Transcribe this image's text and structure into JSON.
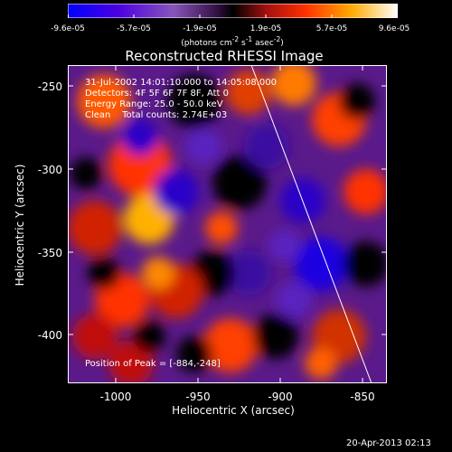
{
  "colorbar": {
    "ticks": [
      "-9.6e-05",
      "-5.7e-05",
      "-1.9e-05",
      "1.9e-05",
      "5.7e-05",
      "9.6e-05"
    ],
    "units_text": "(photons cm",
    "units_sup1": "-2",
    "units_mid": " s",
    "units_sup2": "-1",
    "units_tail": " asec",
    "units_sup3": "-2",
    "units_close": ")",
    "colors": [
      "#0000ff",
      "#5500cc",
      "#8844aa",
      "#552266",
      "#000000",
      "#b01010",
      "#ff4000",
      "#ffaa00",
      "#ffffff"
    ]
  },
  "title": "Reconstructed RHESSI Image",
  "info": {
    "line1": "31-Jul-2002 14:01:10.000 to 14:05:08.000",
    "line2": "Detectors: 4F 5F 6F 7F 8F, Att 0",
    "line3": "Energy Range: 25.0 - 50.0 keV",
    "line4": "Clean    Total counts: 2.74E+03"
  },
  "peak_text": "Position of Peak = [-884,-248]",
  "axes": {
    "xlabel": "Heliocentric X (arcsec)",
    "ylabel": "Heliocentric Y (arcsec)",
    "xticks": [
      "-1000",
      "-950",
      "-900",
      "-850"
    ],
    "yticks": [
      "-250",
      "-300",
      "-350",
      "-400"
    ],
    "xlim": [
      -1030,
      -835
    ],
    "ylim": [
      -430,
      -235
    ]
  },
  "timestamp": "20-Apr-2013 02:13"
}
